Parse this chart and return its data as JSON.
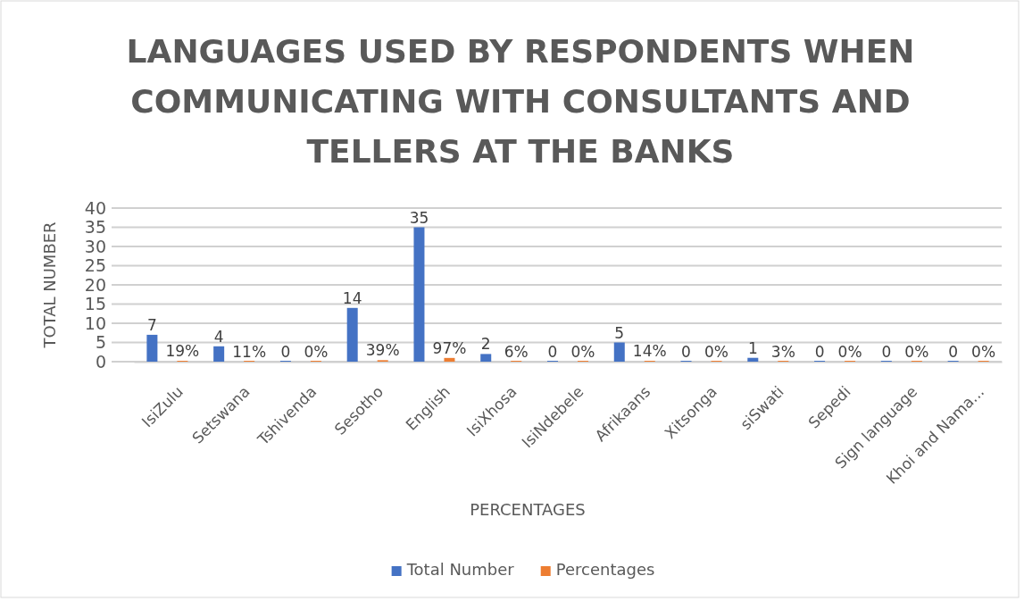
{
  "chart_data": {
    "type": "bar",
    "title": "LANGUAGES USED BY RESPONDENTS WHEN COMMUNICATING WITH CONSULTANTS AND TELLERS AT THE BANKS",
    "xlabel": "PERCENTAGES",
    "ylabel": "TOTAL NUMBER",
    "categories": [
      "IsiZulu",
      "Setswana",
      "Tshivenda",
      "Sesotho",
      "English",
      "IsiXhosa",
      "IsiNdebele",
      "Afrikaans",
      "Xitsonga",
      "siSwati",
      "Sepedi",
      "Sign language",
      "Khoi and Nama..."
    ],
    "series": [
      {
        "name": "Total Number",
        "color": "#4472c4",
        "values": [
          7,
          4,
          0,
          14,
          35,
          2,
          0,
          5,
          0,
          1,
          0,
          0,
          0
        ],
        "value_labels": [
          "7",
          "4",
          "0",
          "14",
          "35",
          "2",
          "0",
          "5",
          "0",
          "1",
          "0",
          "0",
          "0"
        ]
      },
      {
        "name": "Percentages",
        "color": "#ed7d31",
        "values": [
          0.19,
          0.11,
          0,
          0.39,
          0.97,
          0.06,
          0,
          0.14,
          0,
          0.03,
          0,
          0,
          0
        ],
        "value_labels": [
          "19%",
          "11%",
          "0%",
          "39%",
          "97%",
          "6%",
          "0%",
          "14%",
          "0%",
          "3%",
          "0%",
          "0%",
          "0%"
        ]
      }
    ],
    "ylim": [
      0,
      40
    ],
    "yticks": [
      0,
      5,
      10,
      15,
      20,
      25,
      30,
      35,
      40
    ],
    "grid": "y",
    "legend": "bottom"
  }
}
